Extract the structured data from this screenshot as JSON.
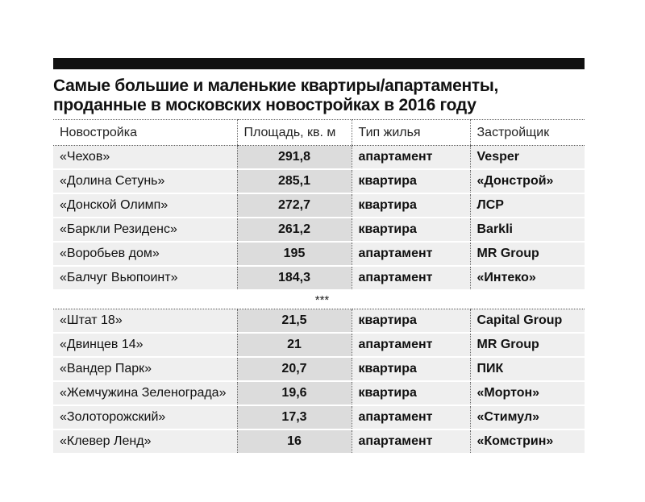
{
  "title": {
    "line1": "Самые большие и маленькие квартиры/апартаменты,",
    "line2": "проданные в московских новостройках в 2016 году"
  },
  "table": {
    "columns": [
      "Новостройка",
      "Площадь, кв. м",
      "Тип жилья",
      "Застройщик"
    ],
    "largest": [
      {
        "name": "«Чехов»",
        "area": "291,8",
        "type": "апартамент",
        "developer": "Vesper"
      },
      {
        "name": "«Долина Сетунь»",
        "area": "285,1",
        "type": "квартира",
        "developer": "«Донстрой»"
      },
      {
        "name": "«Донской Олимп»",
        "area": "272,7",
        "type": "квартира",
        "developer": "ЛСР"
      },
      {
        "name": "«Баркли Резиденс»",
        "area": "261,2",
        "type": "квартира",
        "developer": "Barkli"
      },
      {
        "name": "«Воробьев дом»",
        "area": "195",
        "type": "апартамент",
        "developer": "MR Group"
      },
      {
        "name": "«Балчуг Вьюпоинт»",
        "area": "184,3",
        "type": "апартамент",
        "developer": "«Интеко»"
      }
    ],
    "separator": "***",
    "smallest": [
      {
        "name": "«Штат 18»",
        "area": "21,5",
        "type": "квартира",
        "developer": "Capital Group"
      },
      {
        "name": "«Двинцев 14»",
        "area": "21",
        "type": "апартамент",
        "developer": "MR Group"
      },
      {
        "name": "«Вандер Парк»",
        "area": "20,7",
        "type": "квартира",
        "developer": "ПИК"
      },
      {
        "name": "«Жемчужина Зеленограда»",
        "area": "19,6",
        "type": "квартира",
        "developer": "«Мортон»"
      },
      {
        "name": "«Золоторожский»",
        "area": "17,3",
        "type": "апартамент",
        "developer": "«Стимул»"
      },
      {
        "name": "«Клевер Ленд»",
        "area": "16",
        "type": "апартамент",
        "developer": "«Комстрин»"
      }
    ]
  }
}
